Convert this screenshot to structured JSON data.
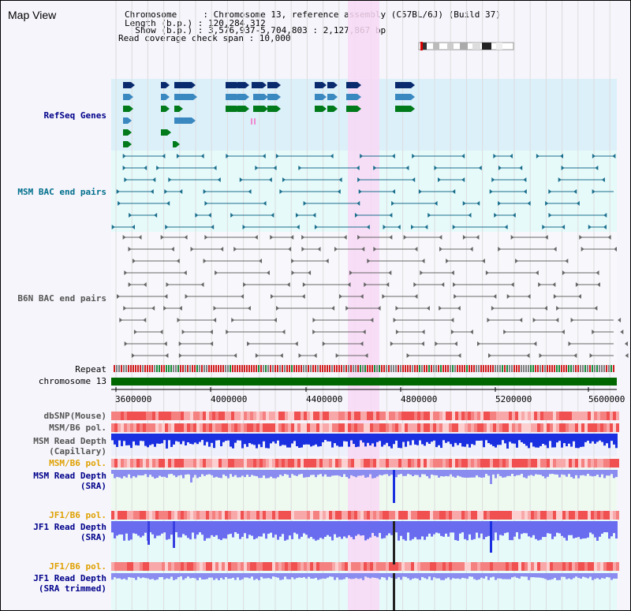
{
  "header": {
    "title": "Map View",
    "chromosome_line": "Chromosome     : Chromosome 13, reference assembly (C57BL/6J) (Build 37)",
    "length_line": "Length (b.p.) : 120,284,312",
    "show_line": "  Show (b.p.) : 3,576,937-5,704,803 : 2,127,867 bp",
    "coverage_line": "Read coverage check span : 10,000"
  },
  "tracks": {
    "refseq": "RefSeq Genes",
    "msm_bac": "MSM BAC end pairs",
    "b6n_bac": "B6N BAC end pairs",
    "repeat": "Repeat",
    "chromosome": "chromosome 13",
    "dbsnp": "dbSNP(Mouse)",
    "msm_b6_pol_1": "MSM/B6 pol.",
    "msm_read_depth_cap": "MSM Read Depth\n(Capillary)",
    "msm_b6_pol_2": "MSM/B6 pol.",
    "msm_read_depth_sra": "MSM Read Depth\n(SRA)",
    "jf1_b6_pol_1": "JF1/B6 pol.",
    "jf1_read_depth_sra": "JF1 Read Depth\n(SRA)",
    "jf1_b6_pol_2": "JF1/B6 pol.",
    "jf1_read_depth_trim": "JF1 Read Depth\n(SRA trimmed)"
  },
  "axis": {
    "ticks": [
      "3600000",
      "4000000",
      "4400000",
      "4800000",
      "5200000",
      "5600000"
    ]
  },
  "colors": {
    "refseq_bg": "#dcf0fa",
    "bac_bg": "#e6fafa",
    "highlight": "#f8d8f4",
    "label_blue": "#00008b",
    "label_teal": "#006e8c",
    "label_orange": "#e0a000",
    "chrom_green": "#006600"
  }
}
